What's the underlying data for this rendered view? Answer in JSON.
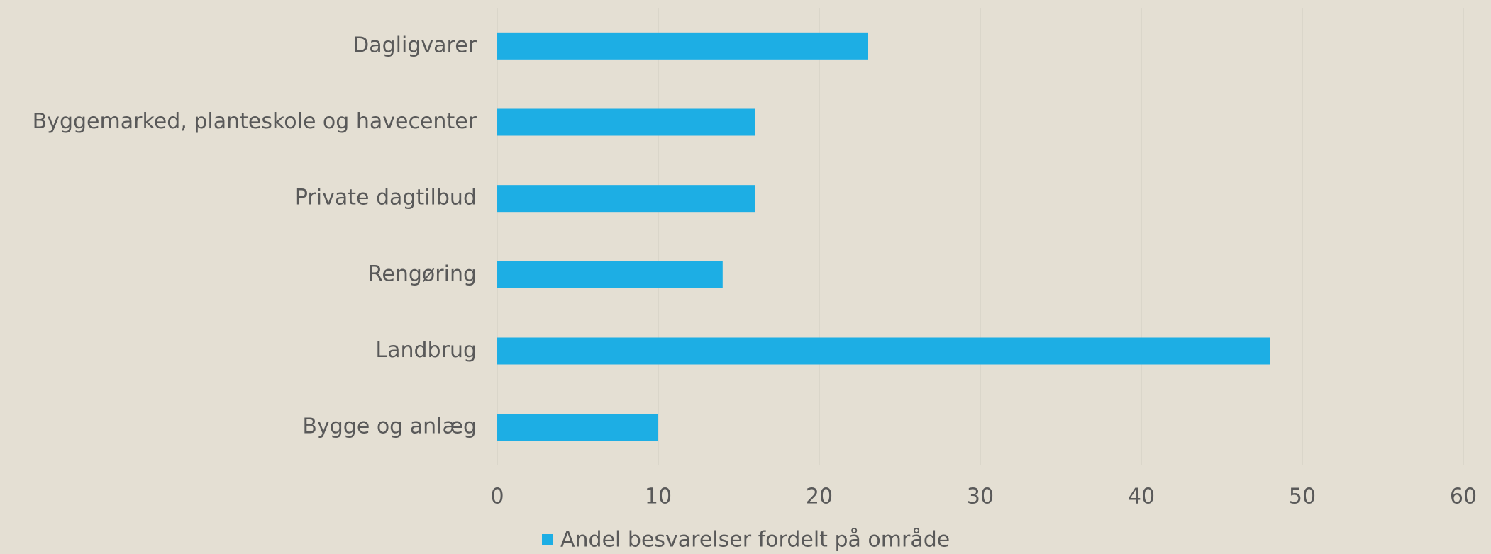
{
  "chart_data": {
    "type": "bar",
    "orientation": "horizontal",
    "categories": [
      "Dagligvarer",
      "Byggemarked, planteskole og havecenter",
      "Private dagtilbud",
      "Rengøring",
      "Landbrug",
      "Bygge og anlæg"
    ],
    "series": [
      {
        "name": "Andel besvarelser fordelt på område",
        "color": "#1daee4",
        "values": [
          23,
          16,
          16,
          14,
          48,
          10
        ]
      }
    ],
    "xlim": [
      0,
      60
    ],
    "xticks": [
      0,
      10,
      20,
      30,
      40,
      50,
      60
    ],
    "grid": true,
    "legend": "bottom"
  }
}
